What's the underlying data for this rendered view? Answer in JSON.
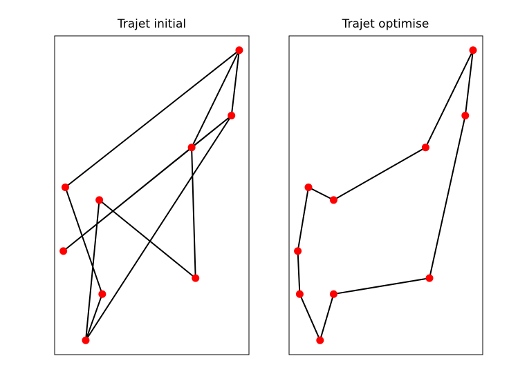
{
  "chart_data": [
    {
      "type": "line",
      "title": "Trajet initial",
      "xlabel": "",
      "ylabel": "",
      "xlim": [
        0,
        10
      ],
      "ylim": [
        0,
        10
      ],
      "axis_ticks": "off",
      "grid": false,
      "line_color": "#000000",
      "point_color": "#ff0000",
      "x": [
        9.5,
        9.1,
        7.05,
        7.25,
        2.3,
        1.6,
        2.45,
        0.55,
        9.5,
        7.05,
        0.45,
        9.1,
        1.6
      ],
      "y": [
        9.55,
        7.5,
        6.5,
        2.4,
        4.85,
        0.45,
        1.9,
        5.25,
        9.55,
        6.5,
        3.25,
        7.5,
        0.45
      ]
    },
    {
      "type": "line",
      "title": "Trajet optimise",
      "xlabel": "",
      "ylabel": "",
      "xlim": [
        0,
        10
      ],
      "ylim": [
        0,
        10
      ],
      "axis_ticks": "off",
      "grid": false,
      "line_color": "#000000",
      "point_color": "#ff0000",
      "x": [
        9.5,
        7.05,
        2.3,
        1.0,
        0.45,
        0.55,
        1.6,
        2.3,
        7.25,
        9.1,
        9.5
      ],
      "y": [
        9.55,
        6.5,
        4.85,
        5.25,
        3.25,
        1.9,
        0.45,
        1.9,
        2.4,
        7.5,
        9.55
      ]
    }
  ]
}
